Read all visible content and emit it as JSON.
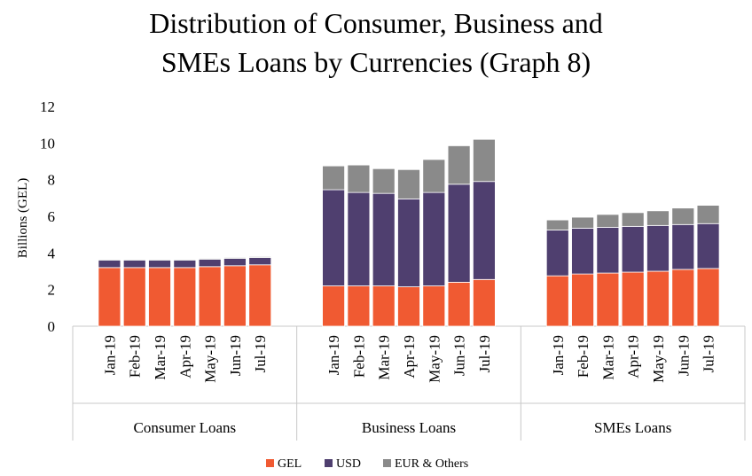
{
  "chart_data": {
    "type": "bar",
    "stacked": true,
    "title_lines": [
      "Distribution of Consumer, Business and",
      "SMEs Loans by Currencies (Graph 8)"
    ],
    "ylabel": "Billions (GEL)",
    "ylim": [
      0,
      12
    ],
    "yticks": [
      "0",
      "2",
      "4",
      "6",
      "8",
      "10",
      "12"
    ],
    "grid": false,
    "legend_position": "bottom",
    "groups": [
      {
        "label": "Consumer Loans",
        "categories": [
          "Jan-19",
          "Feb-19",
          "Mar-19",
          "Apr-19",
          "May-19",
          "Jun-19",
          "Jul-19"
        ],
        "series": [
          {
            "name": "GEL",
            "values": [
              3.2,
              3.2,
              3.2,
              3.2,
              3.25,
              3.3,
              3.35
            ]
          },
          {
            "name": "USD",
            "values": [
              0.4,
              0.4,
              0.4,
              0.4,
              0.4,
              0.4,
              0.4
            ]
          },
          {
            "name": "EUR & Others",
            "values": [
              0.05,
              0.05,
              0.05,
              0.05,
              0.05,
              0.05,
              0.05
            ]
          }
        ]
      },
      {
        "label": "Business Loans",
        "categories": [
          "Jan-19",
          "Feb-19",
          "Mar-19",
          "Apr-19",
          "May-19",
          "Jun-19",
          "Jul-19"
        ],
        "series": [
          {
            "name": "GEL",
            "values": [
              2.2,
              2.2,
              2.2,
              2.15,
              2.2,
              2.4,
              2.55
            ]
          },
          {
            "name": "USD",
            "values": [
              5.25,
              5.1,
              5.05,
              4.8,
              5.1,
              5.35,
              5.35
            ]
          },
          {
            "name": "EUR & Others",
            "values": [
              1.3,
              1.5,
              1.35,
              1.6,
              1.8,
              2.1,
              2.3
            ]
          }
        ]
      },
      {
        "label": "SMEs Loans",
        "categories": [
          "Jan-19",
          "Feb-19",
          "Mar-19",
          "Apr-19",
          "May-19",
          "Jun-19",
          "Jul-19"
        ],
        "series": [
          {
            "name": "GEL",
            "values": [
              2.75,
              2.85,
              2.9,
              2.95,
              3.0,
              3.1,
              3.15
            ]
          },
          {
            "name": "USD",
            "values": [
              2.5,
              2.5,
              2.5,
              2.5,
              2.5,
              2.45,
              2.45
            ]
          },
          {
            "name": "EUR & Others",
            "values": [
              0.55,
              0.6,
              0.7,
              0.75,
              0.8,
              0.9,
              1.0
            ]
          }
        ]
      }
    ],
    "colors": {
      "GEL": "#f05a32",
      "USD": "#4f3f6f",
      "EUR & Others": "#8a8a8a"
    },
    "axis_color": "#c8c8c8"
  }
}
